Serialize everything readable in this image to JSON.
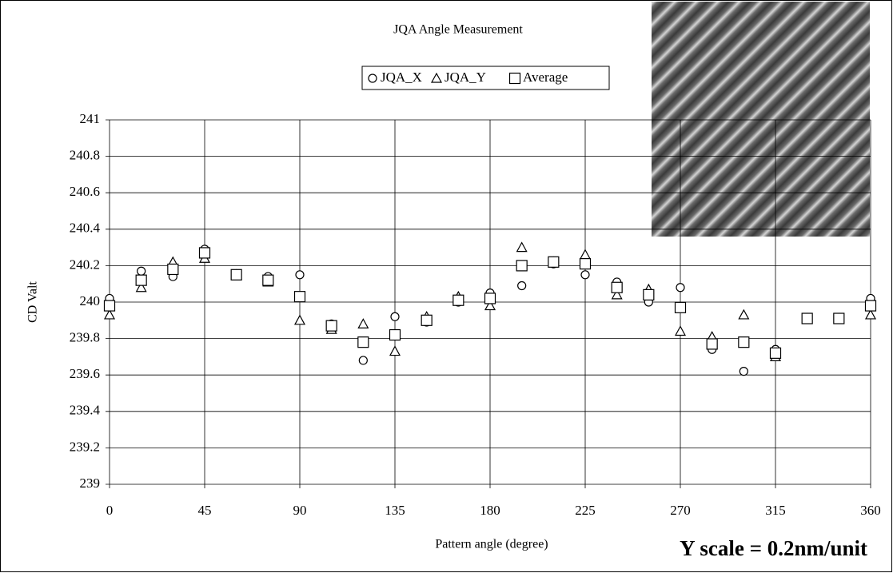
{
  "chart_data": {
    "type": "scatter",
    "title": "JQA Angle Measurement",
    "x_label": "Pattern angle (degree)",
    "y_label": "CD Valt",
    "annotation": "Y scale = 0.2nm/unit",
    "x": [
      0,
      15,
      30,
      45,
      60,
      75,
      90,
      105,
      120,
      135,
      150,
      165,
      180,
      195,
      210,
      225,
      240,
      255,
      270,
      285,
      300,
      315,
      330,
      345,
      360
    ],
    "series": [
      {
        "name": "JQA_X",
        "color": "#000000",
        "marker": "circle",
        "values": [
          240.02,
          240.17,
          240.14,
          240.29,
          240.15,
          240.14,
          240.15,
          239.88,
          239.68,
          239.92,
          239.89,
          240.0,
          240.05,
          240.09,
          240.21,
          240.15,
          240.11,
          240.0,
          240.08,
          239.74,
          239.62,
          239.74,
          239.91,
          239.91,
          240.02
        ]
      },
      {
        "name": "JQA_Y",
        "color": "#000000",
        "marker": "triangle",
        "values": [
          239.93,
          240.08,
          240.22,
          240.24,
          240.15,
          240.11,
          239.9,
          239.85,
          239.88,
          239.73,
          239.92,
          240.03,
          239.98,
          240.3,
          240.22,
          240.26,
          240.04,
          240.07,
          239.84,
          239.81,
          239.93,
          239.7,
          239.91,
          239.91,
          239.93
        ]
      },
      {
        "name": "Average",
        "color": "#000000",
        "marker": "square",
        "values": [
          239.98,
          240.12,
          240.18,
          240.27,
          240.15,
          240.12,
          240.03,
          239.87,
          239.78,
          239.82,
          239.9,
          240.01,
          240.02,
          240.2,
          240.22,
          240.21,
          240.08,
          240.04,
          239.97,
          239.77,
          239.78,
          239.72,
          239.91,
          239.91,
          239.98
        ]
      }
    ],
    "xlim": [
      0,
      360
    ],
    "xticks": [
      0,
      45,
      90,
      135,
      180,
      225,
      270,
      315,
      360
    ],
    "ylim": [
      239,
      241
    ],
    "yticks": [
      239,
      239.2,
      239.4,
      239.6,
      239.8,
      240,
      240.2,
      240.4,
      240.6,
      240.8,
      241
    ],
    "grid": true
  }
}
